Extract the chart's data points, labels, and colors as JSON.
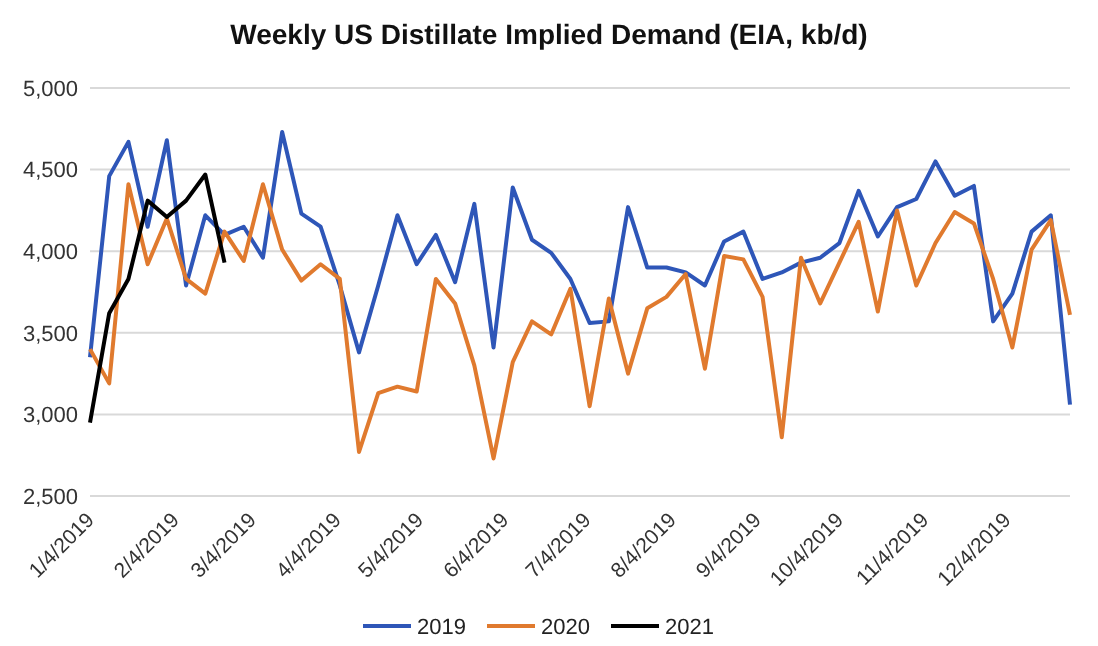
{
  "chart_data": {
    "type": "line",
    "title": "Weekly US Distillate Implied Demand (EIA, kb/d)",
    "x": [
      "2019-01-04",
      "2019-01-11",
      "2019-01-18",
      "2019-01-25",
      "2019-02-01",
      "2019-02-08",
      "2019-02-15",
      "2019-02-22",
      "2019-03-01",
      "2019-03-08",
      "2019-03-15",
      "2019-03-22",
      "2019-03-29",
      "2019-04-05",
      "2019-04-12",
      "2019-04-19",
      "2019-04-26",
      "2019-05-03",
      "2019-05-10",
      "2019-05-17",
      "2019-05-24",
      "2019-05-31",
      "2019-06-07",
      "2019-06-14",
      "2019-06-21",
      "2019-06-28",
      "2019-07-05",
      "2019-07-12",
      "2019-07-19",
      "2019-07-26",
      "2019-08-02",
      "2019-08-09",
      "2019-08-16",
      "2019-08-23",
      "2019-08-30",
      "2019-09-06",
      "2019-09-13",
      "2019-09-20",
      "2019-09-27",
      "2019-10-04",
      "2019-10-11",
      "2019-10-18",
      "2019-10-25",
      "2019-11-01",
      "2019-11-08",
      "2019-11-15",
      "2019-11-22",
      "2019-11-29",
      "2019-12-06",
      "2019-12-13",
      "2019-12-20",
      "2019-12-27"
    ],
    "series": [
      {
        "name": "2019",
        "color": "#2e56b8",
        "values": [
          3350,
          4460,
          4670,
          4150,
          4680,
          3790,
          4220,
          4100,
          4150,
          3960,
          4730,
          4230,
          4150,
          3790,
          3380,
          3790,
          4220,
          3920,
          4100,
          3810,
          4290,
          3410,
          4390,
          4070,
          3990,
          3830,
          3560,
          3570,
          4270,
          3900,
          3900,
          3870,
          3790,
          4060,
          4120,
          3830,
          3870,
          3930,
          3960,
          4050,
          4370,
          4090,
          4270,
          4320,
          4550,
          4340,
          4400,
          3570,
          3740,
          4120,
          4220,
          3060
        ]
      },
      {
        "name": "2020",
        "color": "#e07a2e",
        "values": [
          3400,
          3190,
          4410,
          3920,
          4200,
          3830,
          3740,
          4120,
          3940,
          4410,
          4010,
          3820,
          3920,
          3830,
          2770,
          3130,
          3170,
          3140,
          3830,
          3680,
          3300,
          2730,
          3320,
          3570,
          3490,
          3770,
          3050,
          3710,
          3250,
          3650,
          3720,
          3860,
          3280,
          3970,
          3950,
          3720,
          2860,
          3960,
          3680,
          3930,
          4180,
          3630,
          4250,
          3790,
          4050,
          4240,
          4170,
          3830,
          3410,
          4010,
          4190,
          3610
        ]
      },
      {
        "name": "2021",
        "color": "#000000",
        "values": [
          2950,
          3620,
          3830,
          4310,
          4210,
          4310,
          4470,
          3930,
          null,
          null,
          null,
          null,
          null,
          null,
          null,
          null,
          null,
          null,
          null,
          null,
          null,
          null,
          null,
          null,
          null,
          null,
          null,
          null,
          null,
          null,
          null,
          null,
          null,
          null,
          null,
          null,
          null,
          null,
          null,
          null,
          null,
          null,
          null,
          null,
          null,
          null,
          null,
          null,
          null,
          null,
          null,
          null
        ]
      }
    ],
    "xlim": [
      "2019-01-04",
      "2019-12-27"
    ],
    "xticks": [
      {
        "value": "2019-01-04",
        "label": "1/4/2019"
      },
      {
        "value": "2019-02-04",
        "label": "2/4/2019"
      },
      {
        "value": "2019-03-04",
        "label": "3/4/2019"
      },
      {
        "value": "2019-04-04",
        "label": "4/4/2019"
      },
      {
        "value": "2019-05-04",
        "label": "5/4/2019"
      },
      {
        "value": "2019-06-04",
        "label": "6/4/2019"
      },
      {
        "value": "2019-07-04",
        "label": "7/4/2019"
      },
      {
        "value": "2019-08-04",
        "label": "8/4/2019"
      },
      {
        "value": "2019-09-04",
        "label": "9/4/2019"
      },
      {
        "value": "2019-10-04",
        "label": "10/4/2019"
      },
      {
        "value": "2019-11-04",
        "label": "11/4/2019"
      },
      {
        "value": "2019-12-04",
        "label": "12/4/2019"
      }
    ],
    "ylim": [
      2500,
      5000
    ],
    "yticks": [
      {
        "value": 2500,
        "label": "2,500"
      },
      {
        "value": 3000,
        "label": "3,000"
      },
      {
        "value": 3500,
        "label": "3,500"
      },
      {
        "value": 4000,
        "label": "4,000"
      },
      {
        "value": 4500,
        "label": "4,500"
      },
      {
        "value": 5000,
        "label": "5,000"
      }
    ],
    "grid": "y",
    "legend": "bottom",
    "marker": "none",
    "line_style": "solid"
  }
}
